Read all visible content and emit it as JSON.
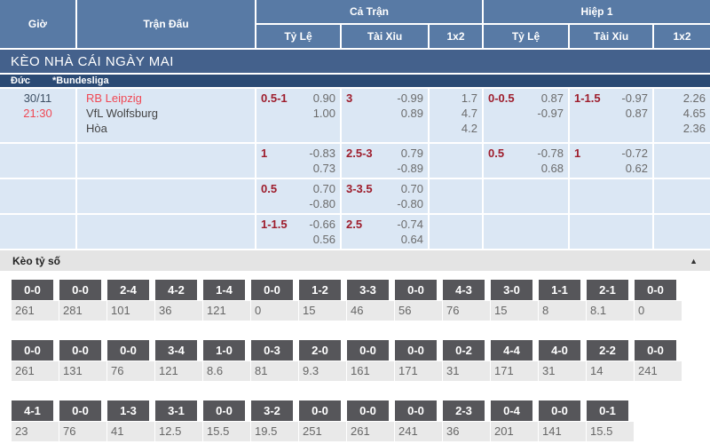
{
  "colors": {
    "header_blue": "#587aa5",
    "title_blue": "#44618c",
    "league_navy": "#2b4a74",
    "row_bg": "#dbe7f4",
    "handicap_red": "#9e1d2c",
    "odds_gray": "#6b6b6b",
    "accent_red": "#f04854",
    "score_badge_gray": "#56565a"
  },
  "table_header": {
    "time": "Giờ",
    "match": "Trận Đấu",
    "full_time": "Cả Trận",
    "first_half": "Hiệp 1",
    "handicap": "Tỷ Lệ",
    "over_under": "Tài Xỉu",
    "one_x_two": "1x2"
  },
  "section_title": "KÈO NHÀ CÁI NGÀY MAI",
  "league": {
    "country": "Đức",
    "flag_icon": "germany-flag",
    "name": "*Bundesliga"
  },
  "match": {
    "date": "30/11",
    "time": "21:30",
    "home": "RB Leipzig",
    "away": "VfL Wolfsburg",
    "draw": "Hòa"
  },
  "odds_rows": [
    {
      "ft_hdp": {
        "line": "0.5-1",
        "odds": [
          "0.90",
          "1.00"
        ]
      },
      "ft_ou": {
        "line": "3",
        "odds": [
          "-0.99",
          "0.89"
        ]
      },
      "ft_1x2": [
        "1.7",
        "4.7",
        "4.2"
      ],
      "h1_hdp": {
        "line": "0-0.5",
        "odds": [
          "0.87",
          "-0.97"
        ]
      },
      "h1_ou": {
        "line": "1-1.5",
        "odds": [
          "-0.97",
          "0.87"
        ]
      },
      "h1_1x2": [
        "2.26",
        "4.65",
        "2.36"
      ]
    },
    {
      "ft_hdp": {
        "line": "1",
        "odds": [
          "-0.83",
          "0.73"
        ]
      },
      "ft_ou": {
        "line": "2.5-3",
        "odds": [
          "0.79",
          "-0.89"
        ]
      },
      "ft_1x2": null,
      "h1_hdp": {
        "line": "0.5",
        "odds": [
          "-0.78",
          "0.68"
        ]
      },
      "h1_ou": {
        "line": "1",
        "odds": [
          "-0.72",
          "0.62"
        ]
      },
      "h1_1x2": null
    },
    {
      "ft_hdp": {
        "line": "0.5",
        "odds": [
          "0.70",
          "-0.80"
        ]
      },
      "ft_ou": {
        "line": "3-3.5",
        "odds": [
          "0.70",
          "-0.80"
        ]
      },
      "ft_1x2": null,
      "h1_hdp": null,
      "h1_ou": null,
      "h1_1x2": null
    },
    {
      "ft_hdp": {
        "line": "1-1.5",
        "odds": [
          "-0.66",
          "0.56"
        ]
      },
      "ft_ou": {
        "line": "2.5",
        "odds": [
          "-0.74",
          "0.64"
        ]
      },
      "ft_1x2": null,
      "h1_hdp": null,
      "h1_ou": null,
      "h1_1x2": null
    }
  ],
  "score_section": {
    "title": "Kèo tỷ số",
    "collapse_icon": "▲",
    "rows": [
      [
        {
          "score": "0-0",
          "odds": "261"
        },
        {
          "score": "0-0",
          "odds": "281"
        },
        {
          "score": "2-4",
          "odds": "101"
        },
        {
          "score": "4-2",
          "odds": "36"
        },
        {
          "score": "1-4",
          "odds": "121"
        },
        {
          "score": "0-0",
          "odds": "0"
        },
        {
          "score": "1-2",
          "odds": "15"
        },
        {
          "score": "3-3",
          "odds": "46"
        },
        {
          "score": "0-0",
          "odds": "56"
        },
        {
          "score": "4-3",
          "odds": "76"
        },
        {
          "score": "3-0",
          "odds": "15"
        },
        {
          "score": "1-1",
          "odds": "8"
        },
        {
          "score": "2-1",
          "odds": "8.1"
        },
        {
          "score": "0-0",
          "odds": "0"
        }
      ],
      [
        {
          "score": "0-0",
          "odds": "261"
        },
        {
          "score": "0-0",
          "odds": "131"
        },
        {
          "score": "0-0",
          "odds": "76"
        },
        {
          "score": "3-4",
          "odds": "121"
        },
        {
          "score": "1-0",
          "odds": "8.6"
        },
        {
          "score": "0-3",
          "odds": "81"
        },
        {
          "score": "2-0",
          "odds": "9.3"
        },
        {
          "score": "0-0",
          "odds": "161"
        },
        {
          "score": "0-0",
          "odds": "171"
        },
        {
          "score": "0-2",
          "odds": "31"
        },
        {
          "score": "4-4",
          "odds": "171"
        },
        {
          "score": "4-0",
          "odds": "31"
        },
        {
          "score": "2-2",
          "odds": "14"
        },
        {
          "score": "0-0",
          "odds": "241"
        }
      ],
      [
        {
          "score": "4-1",
          "odds": "23"
        },
        {
          "score": "0-0",
          "odds": "76"
        },
        {
          "score": "1-3",
          "odds": "41"
        },
        {
          "score": "3-1",
          "odds": "12.5"
        },
        {
          "score": "0-0",
          "odds": "15.5"
        },
        {
          "score": "3-2",
          "odds": "19.5"
        },
        {
          "score": "0-0",
          "odds": "251"
        },
        {
          "score": "0-0",
          "odds": "261"
        },
        {
          "score": "0-0",
          "odds": "241"
        },
        {
          "score": "2-3",
          "odds": "36"
        },
        {
          "score": "0-4",
          "odds": "201"
        },
        {
          "score": "0-0",
          "odds": "141"
        },
        {
          "score": "0-1",
          "odds": "15.5"
        }
      ]
    ]
  }
}
